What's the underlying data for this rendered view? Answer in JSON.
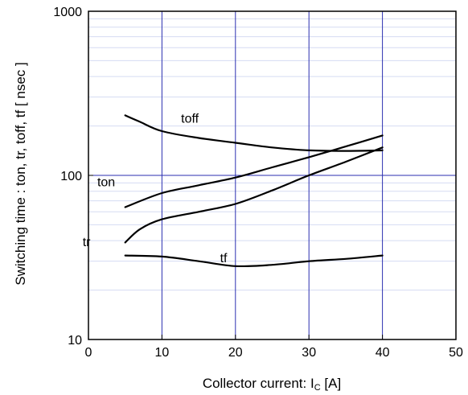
{
  "chart_data": {
    "type": "line",
    "title": "",
    "xlabel_main": "Collector current: I",
    "xlabel_sub": "C",
    "xlabel_unit": " [A]",
    "ylabel": "Switching time  :  ton, tr, toff, tf  [ nsec ]",
    "xlim": [
      0,
      50
    ],
    "ylim": [
      10,
      1000
    ],
    "yscale": "log",
    "x_ticks": [
      "0",
      "10",
      "20",
      "30",
      "40",
      "50"
    ],
    "y_ticks": [
      "10",
      "100",
      "1000"
    ],
    "grid": true,
    "series": [
      {
        "name": "toff",
        "x": [
          5,
          7,
          10,
          15,
          20,
          25,
          30,
          35,
          40
        ],
        "values": [
          232,
          212,
          186,
          169,
          158,
          148,
          142,
          141,
          142
        ]
      },
      {
        "name": "ton",
        "x": [
          5,
          10,
          15,
          20,
          25,
          30,
          35,
          40
        ],
        "values": [
          64,
          78,
          87,
          97,
          112,
          129,
          150,
          175
        ]
      },
      {
        "name": "tr",
        "x": [
          5,
          7,
          10,
          15,
          20,
          25,
          30,
          35,
          40
        ],
        "values": [
          39,
          47,
          54,
          60,
          67,
          81,
          100,
          121,
          148
        ]
      },
      {
        "name": "tf",
        "x": [
          5,
          10,
          15,
          20,
          25,
          30,
          35,
          40
        ],
        "values": [
          32.5,
          32,
          30,
          28,
          28.5,
          30,
          31,
          32.5
        ]
      }
    ],
    "annotations": [
      {
        "text": "toff",
        "series": "toff"
      },
      {
        "text": "ton",
        "series": "ton"
      },
      {
        "text": "tr",
        "series": "tr"
      },
      {
        "text": "tf",
        "series": "tf"
      }
    ]
  }
}
